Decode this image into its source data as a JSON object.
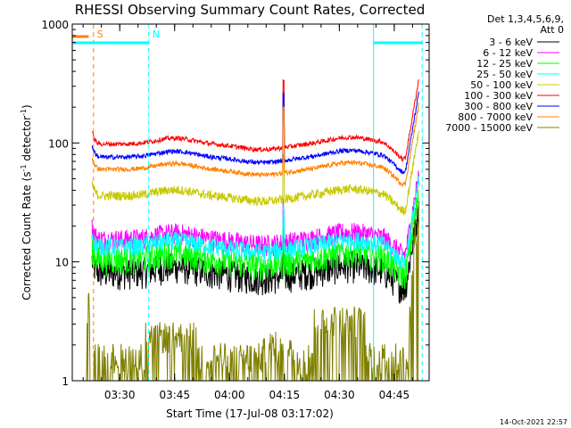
{
  "chart_data": {
    "type": "line",
    "title": "RHESSI Observing Summary Count Rates, Corrected",
    "xlabel": "Start Time (17-Jul-08 03:17:02)",
    "ylabel_main": "Corrected Count Rate (s",
    "ylabel_sup1": "-1",
    "ylabel_mid": " detector",
    "ylabel_sup2": "-1",
    "ylabel_end": ")",
    "y_scale": "log",
    "ylim": [
      1,
      1000
    ],
    "xlim_minutes": [
      0,
      97.5
    ],
    "x_ticks": [
      {
        "label": "03:30",
        "value": 12.97
      },
      {
        "label": "03:45",
        "value": 27.97
      },
      {
        "label": "04:00",
        "value": 42.97
      },
      {
        "label": "04:15",
        "value": 57.97
      },
      {
        "label": "04:30",
        "value": 72.97
      },
      {
        "label": "04:45",
        "value": 87.97
      }
    ],
    "y_ticks": [
      {
        "label": "1",
        "value": 1
      },
      {
        "label": "10",
        "value": 10
      },
      {
        "label": "100",
        "value": 100
      },
      {
        "label": "1000",
        "value": 1000
      }
    ],
    "legend_header": [
      "Det 1,3,4,5,6,9,",
      "Att 0"
    ],
    "legend_position": "right",
    "series": [
      {
        "name": "3 - 6 keV",
        "color": "#000000",
        "level": 8.2,
        "noise": 0.1
      },
      {
        "name": "6 - 12 keV",
        "color": "#ff00ff",
        "level": 15.5,
        "noise": 0.07
      },
      {
        "name": "12 - 25 keV",
        "color": "#00ff00",
        "level": 10.5,
        "noise": 0.09
      },
      {
        "name": "25 - 50 keV",
        "color": "#00ffff",
        "level": 13.5,
        "noise": 0.06
      },
      {
        "name": "50 - 100 keV",
        "color": "#c8c800",
        "level": 36,
        "noise": 0.03
      },
      {
        "name": "100 - 300 keV",
        "color": "#ff0000",
        "level": 98,
        "noise": 0.015
      },
      {
        "name": "300 - 800 keV",
        "color": "#0000ff",
        "level": 76,
        "noise": 0.015
      },
      {
        "name": "800 - 7000 keV",
        "color": "#ff8000",
        "level": 60,
        "noise": 0.015
      },
      {
        "name": "7000 - 15000 keV",
        "color": "#808000",
        "level": 1.5,
        "noise": 0
      }
    ],
    "spike_x": 57.7,
    "markers": [
      {
        "label": "S",
        "color": "#ff8000",
        "x": 5.8,
        "style": "dashed",
        "y_frac": 0.925
      },
      {
        "label": "N",
        "color": "#00ffff",
        "x": 20.9,
        "style": "dashed",
        "y_frac": 0.9
      }
    ],
    "night_segments": [
      {
        "from": 0,
        "to": 20.9,
        "color": "#00ffff"
      },
      {
        "from": 82.3,
        "to": 95.6,
        "color": "#00ffff"
      }
    ],
    "s_segment": {
      "from": 0,
      "to": 4.5,
      "color": "#ff8000"
    },
    "extra_vlines": [
      {
        "x": 82.3,
        "color": "#00ffff",
        "style": "solid"
      },
      {
        "x": 95.6,
        "color": "#00ffff",
        "style": "dashed"
      }
    ]
  },
  "footer_timestamp": "14-Oct-2021 22:57"
}
